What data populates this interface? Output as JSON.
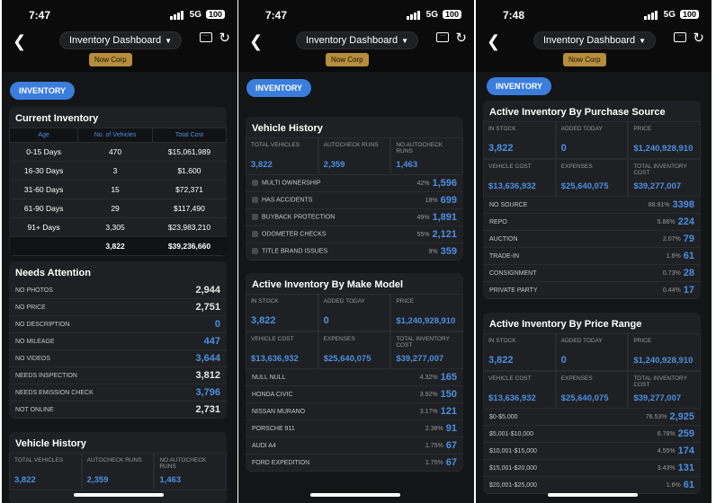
{
  "screens": [
    {
      "time": "7:47",
      "network": "5G",
      "battery": "100",
      "title": "Inventory Dashboard",
      "corp": "Now Corp",
      "tab": "INVENTORY"
    },
    {
      "time": "7:47",
      "network": "5G",
      "battery": "100",
      "title": "Inventory Dashboard",
      "corp": "Now Corp",
      "tab": "INVENTORY"
    },
    {
      "time": "7:48",
      "network": "5G",
      "battery": "100",
      "title": "Inventory Dashboard",
      "corp": "Now Corp",
      "tab": "INVENTORY"
    }
  ],
  "current_inventory": {
    "title": "Current Inventory",
    "headers": [
      "Age",
      "No. of Vehicles",
      "Total Cost"
    ],
    "rows": [
      [
        "0-15 Days",
        "470",
        "$15,061,989"
      ],
      [
        "16-30 Days",
        "3",
        "$1,600"
      ],
      [
        "31-60 Days",
        "15",
        "$72,371"
      ],
      [
        "61-90 Days",
        "29",
        "$117,490"
      ],
      [
        "91+ Days",
        "3,305",
        "$23,983,210"
      ]
    ],
    "total": [
      "",
      "3,822",
      "$39,236,660"
    ]
  },
  "needs_attention": {
    "title": "Needs Attention",
    "items": [
      {
        "label": "NO PHOTOS",
        "value": "2,944",
        "blue": false
      },
      {
        "label": "NO PRICE",
        "value": "2,751",
        "blue": false
      },
      {
        "label": "NO DESCRIPTION",
        "value": "0",
        "blue": true
      },
      {
        "label": "NO MILEAGE",
        "value": "447",
        "blue": true
      },
      {
        "label": "NO VIDEOS",
        "value": "3,644",
        "blue": true
      },
      {
        "label": "NEEDS INSPECTION",
        "value": "3,812",
        "blue": false
      },
      {
        "label": "NEEDS EMISSION CHECK",
        "value": "3,796",
        "blue": true
      },
      {
        "label": "NOT ONLINE",
        "value": "2,731",
        "blue": false
      }
    ]
  },
  "vehicle_history": {
    "title": "Vehicle History",
    "stats": [
      {
        "label": "TOTAL VEHICLES",
        "value": "3,822"
      },
      {
        "label": "AUTOCHECK RUNS",
        "value": "2,359"
      },
      {
        "label": "NO AUTOCHECK RUNS",
        "value": "1,463"
      }
    ],
    "items": [
      {
        "label": "MULTI OWNERSHIP",
        "pct": "42%",
        "value": "1,596"
      },
      {
        "label": "HAS ACCIDENTS",
        "pct": "18%",
        "value": "699"
      },
      {
        "label": "BUYBACK PROTECTION",
        "pct": "49%",
        "value": "1,891"
      },
      {
        "label": "ODOMETER CHECKS",
        "pct": "55%",
        "value": "2,121"
      },
      {
        "label": "TITLE BRAND ISSUES",
        "pct": "9%",
        "value": "359"
      }
    ]
  },
  "make_model": {
    "title": "Active Inventory By Make Model",
    "stats": [
      {
        "label": "IN STOCK",
        "value": "3,822"
      },
      {
        "label": "ADDED TODAY",
        "value": "0"
      },
      {
        "label": "PRICE",
        "value": "$1,240,928,910"
      },
      {
        "label": "VEHICLE COST",
        "value": "$13,636,932"
      },
      {
        "label": "EXPENSES",
        "value": "$25,640,075"
      },
      {
        "label": "TOTAL INVENTORY COST",
        "value": "$39,277,007"
      }
    ],
    "items": [
      {
        "label": "NULL NULL",
        "pct": "4.32%",
        "value": "165"
      },
      {
        "label": "HONDA CIVIC",
        "pct": "3.92%",
        "value": "150"
      },
      {
        "label": "NISSAN MURANO",
        "pct": "3.17%",
        "value": "121"
      },
      {
        "label": "PORSCHE 911",
        "pct": "2.38%",
        "value": "91"
      },
      {
        "label": "AUDI A4",
        "pct": "1.75%",
        "value": "67"
      },
      {
        "label": "FORD EXPEDITION",
        "pct": "1.75%",
        "value": "67"
      }
    ]
  },
  "purchase_source": {
    "title": "Active Inventory By Purchase Source",
    "stats": [
      {
        "label": "IN STOCK",
        "value": "3,822"
      },
      {
        "label": "ADDED TODAY",
        "value": "0"
      },
      {
        "label": "PRICE",
        "value": "$1,240,928,910"
      },
      {
        "label": "VEHICLE COST",
        "value": "$13,636,932"
      },
      {
        "label": "EXPENSES",
        "value": "$25,640,075"
      },
      {
        "label": "TOTAL INVENTORY COST",
        "value": "$39,277,007"
      }
    ],
    "items": [
      {
        "label": "NO SOURCE",
        "pct": "88.91%",
        "value": "3398"
      },
      {
        "label": "REPO",
        "pct": "5.86%",
        "value": "224"
      },
      {
        "label": "AUCTION",
        "pct": "2.07%",
        "value": "79"
      },
      {
        "label": "TRADE-IN",
        "pct": "1.6%",
        "value": "61"
      },
      {
        "label": "CONSIGNMENT",
        "pct": "0.73%",
        "value": "28"
      },
      {
        "label": "PRIVATE PARTY",
        "pct": "0.44%",
        "value": "17"
      }
    ]
  },
  "price_range": {
    "title": "Active Inventory By Price Range",
    "stats": [
      {
        "label": "IN STOCK",
        "value": "3,822"
      },
      {
        "label": "ADDED TODAY",
        "value": "0"
      },
      {
        "label": "PRICE",
        "value": "$1,240,928,910"
      },
      {
        "label": "VEHICLE COST",
        "value": "$13,636,932"
      },
      {
        "label": "EXPENSES",
        "value": "$25,640,075"
      },
      {
        "label": "TOTAL INVENTORY COST",
        "value": "$39,277,007"
      }
    ],
    "items": [
      {
        "label": "$0-$5,000",
        "pct": "76.53%",
        "value": "2,925"
      },
      {
        "label": "$5,001-$10,000",
        "pct": "6.78%",
        "value": "259"
      },
      {
        "label": "$10,001-$15,000",
        "pct": "4.55%",
        "value": "174"
      },
      {
        "label": "$15,001-$20,000",
        "pct": "3.43%",
        "value": "131"
      },
      {
        "label": "$20,001-$25,000",
        "pct": "1.6%",
        "value": "61"
      }
    ]
  }
}
